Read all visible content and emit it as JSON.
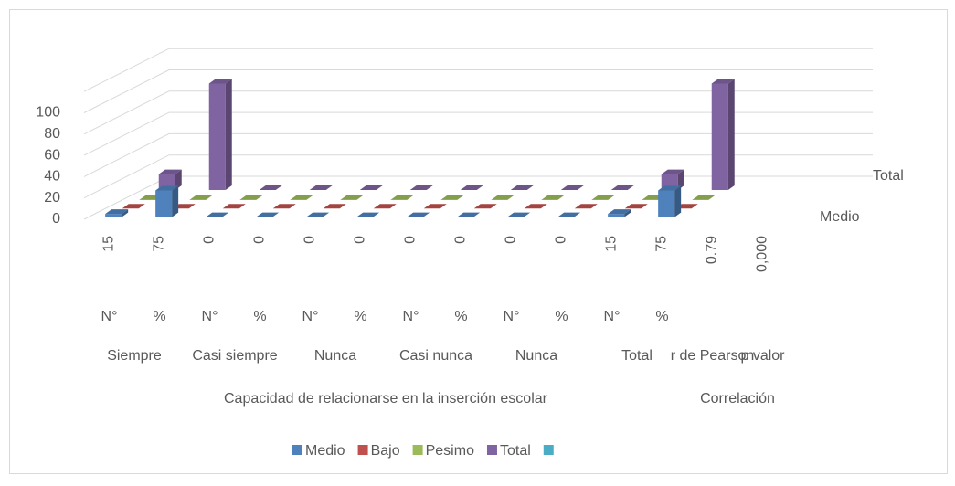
{
  "chart_data": {
    "type": "bar3d",
    "categories": [
      "15",
      "75",
      "0",
      "0",
      "0",
      "0",
      "0",
      "0",
      "0",
      "0",
      "15",
      "75",
      "0.79",
      "0,000"
    ],
    "subcategories": [
      "N°",
      "%",
      "N°",
      "%",
      "N°",
      "%",
      "N°",
      "%",
      "N°",
      "%",
      "N°",
      "%"
    ],
    "groups": [
      "Siempre",
      "Casi siempre",
      "Nunca",
      "Casi nunca",
      "Nunca",
      "Total",
      "r de Pearson",
      "p valor"
    ],
    "sections": [
      "Capacidad de relacionarse en la inserción escolar",
      "Correlación"
    ],
    "series": [
      {
        "name": "Medio",
        "color": "#4f81bd",
        "values": [
          3,
          25,
          0,
          0,
          0,
          0,
          0,
          0,
          0,
          0,
          3,
          25,
          null,
          null
        ]
      },
      {
        "name": "Bajo",
        "color": "#c0504d",
        "values": [
          0,
          0,
          0,
          0,
          0,
          0,
          0,
          0,
          0,
          0,
          0,
          0,
          null,
          null
        ]
      },
      {
        "name": "Pesimo",
        "color": "#9bbb59",
        "values": [
          0,
          0,
          0,
          0,
          0,
          0,
          0,
          0,
          0,
          0,
          0,
          0,
          null,
          null
        ]
      },
      {
        "name": "Total",
        "color": "#8064a2",
        "values": [
          15,
          100,
          0,
          0,
          0,
          0,
          0,
          0,
          0,
          0,
          15,
          100,
          null,
          null
        ]
      },
      {
        "color": "#4bacc6",
        "values": [
          null,
          null,
          null,
          null,
          null,
          null,
          null,
          null,
          null,
          null,
          null,
          null,
          null,
          null
        ]
      }
    ],
    "ylim": [
      0,
      120
    ],
    "yticks": [
      0,
      20,
      40,
      60,
      80,
      100
    ],
    "grid": true,
    "legend": "bottom"
  }
}
